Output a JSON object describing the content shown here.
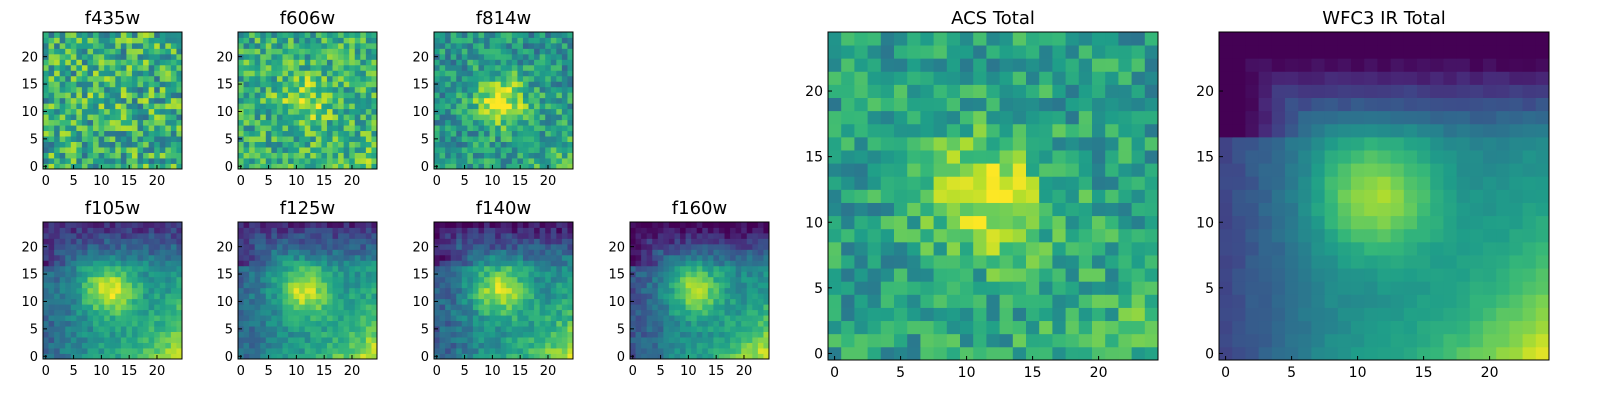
{
  "figure": {
    "background": "#ffffff"
  },
  "colormap": {
    "name": "viridis",
    "stops": [
      "#440154",
      "#482878",
      "#3e4989",
      "#31688e",
      "#26828e",
      "#1f9e89",
      "#35b779",
      "#6ece58",
      "#b5de2b",
      "#fde725"
    ]
  },
  "chart_data": [
    {
      "type": "heatmap",
      "id": "f435w",
      "title": "f435w",
      "grid": [
        25,
        25
      ],
      "xticks": [
        0,
        5,
        10,
        15,
        20
      ],
      "yticks": [
        0,
        5,
        10,
        15,
        20
      ],
      "xlim": [
        0,
        24
      ],
      "ylim": [
        0,
        24
      ],
      "pattern": {
        "noise": 0.55,
        "blob": 0.05,
        "corner": 0.0,
        "darkedge": 0.0,
        "base": 0.62
      }
    },
    {
      "type": "heatmap",
      "id": "f606w",
      "title": "f606w",
      "grid": [
        25,
        25
      ],
      "xticks": [
        0,
        5,
        10,
        15,
        20
      ],
      "yticks": [
        0,
        5,
        10,
        15,
        20
      ],
      "xlim": [
        0,
        24
      ],
      "ylim": [
        0,
        24
      ],
      "pattern": {
        "noise": 0.45,
        "blob": 0.25,
        "corner": 0.12,
        "darkedge": 0.0,
        "base": 0.62
      }
    },
    {
      "type": "heatmap",
      "id": "f814w",
      "title": "f814w",
      "grid": [
        25,
        25
      ],
      "xticks": [
        0,
        5,
        10,
        15,
        20
      ],
      "yticks": [
        0,
        5,
        10,
        15,
        20
      ],
      "xlim": [
        0,
        24
      ],
      "ylim": [
        0,
        24
      ],
      "pattern": {
        "noise": 0.4,
        "blob": 0.45,
        "corner": 0.2,
        "darkedge": 0.0,
        "base": 0.52
      }
    },
    {
      "type": "heatmap",
      "id": "f105w",
      "title": "f105w",
      "grid": [
        25,
        25
      ],
      "xticks": [
        0,
        5,
        10,
        15,
        20
      ],
      "yticks": [
        0,
        5,
        10,
        15,
        20
      ],
      "xlim": [
        0,
        24
      ],
      "ylim": [
        0,
        24
      ],
      "pattern": {
        "noise": 0.2,
        "blob": 0.45,
        "corner": 0.45,
        "darkedge": 0.35,
        "base": 0.48
      }
    },
    {
      "type": "heatmap",
      "id": "f125w",
      "title": "f125w",
      "grid": [
        25,
        25
      ],
      "xticks": [
        0,
        5,
        10,
        15,
        20
      ],
      "yticks": [
        0,
        5,
        10,
        15,
        20
      ],
      "xlim": [
        0,
        24
      ],
      "ylim": [
        0,
        24
      ],
      "pattern": {
        "noise": 0.2,
        "blob": 0.45,
        "corner": 0.45,
        "darkedge": 0.35,
        "base": 0.48
      }
    },
    {
      "type": "heatmap",
      "id": "f140w",
      "title": "f140w",
      "grid": [
        25,
        25
      ],
      "xticks": [
        0,
        5,
        10,
        15,
        20
      ],
      "yticks": [
        0,
        5,
        10,
        15,
        20
      ],
      "xlim": [
        0,
        24
      ],
      "ylim": [
        0,
        24
      ],
      "pattern": {
        "noise": 0.22,
        "blob": 0.45,
        "corner": 0.45,
        "darkedge": 0.4,
        "base": 0.46
      }
    },
    {
      "type": "heatmap",
      "id": "f160w",
      "title": "f160w",
      "grid": [
        25,
        25
      ],
      "xticks": [
        0,
        5,
        10,
        15,
        20
      ],
      "yticks": [
        0,
        5,
        10,
        15,
        20
      ],
      "xlim": [
        0,
        24
      ],
      "ylim": [
        0,
        24
      ],
      "pattern": {
        "noise": 0.18,
        "blob": 0.42,
        "corner": 0.5,
        "darkedge": 0.45,
        "base": 0.44
      }
    },
    {
      "type": "heatmap",
      "id": "acs-total",
      "title": "ACS Total",
      "grid": [
        25,
        25
      ],
      "xticks": [
        0,
        5,
        10,
        15,
        20
      ],
      "yticks": [
        0,
        5,
        10,
        15,
        20
      ],
      "xlim": [
        0,
        24
      ],
      "ylim": [
        0,
        24
      ],
      "pattern": {
        "noise": 0.35,
        "blob": 0.4,
        "corner": 0.15,
        "darkedge": 0.0,
        "base": 0.56
      }
    },
    {
      "type": "heatmap",
      "id": "wfc3-ir-total",
      "title": "WFC3 IR Total",
      "grid": [
        25,
        25
      ],
      "xticks": [
        0,
        5,
        10,
        15,
        20
      ],
      "yticks": [
        0,
        5,
        10,
        15,
        20
      ],
      "xlim": [
        0,
        24
      ],
      "ylim": [
        0,
        24
      ],
      "pattern": {
        "noise": 0.05,
        "blob": 0.42,
        "corner": 0.5,
        "darkedge": 0.55,
        "base": 0.44
      }
    }
  ]
}
